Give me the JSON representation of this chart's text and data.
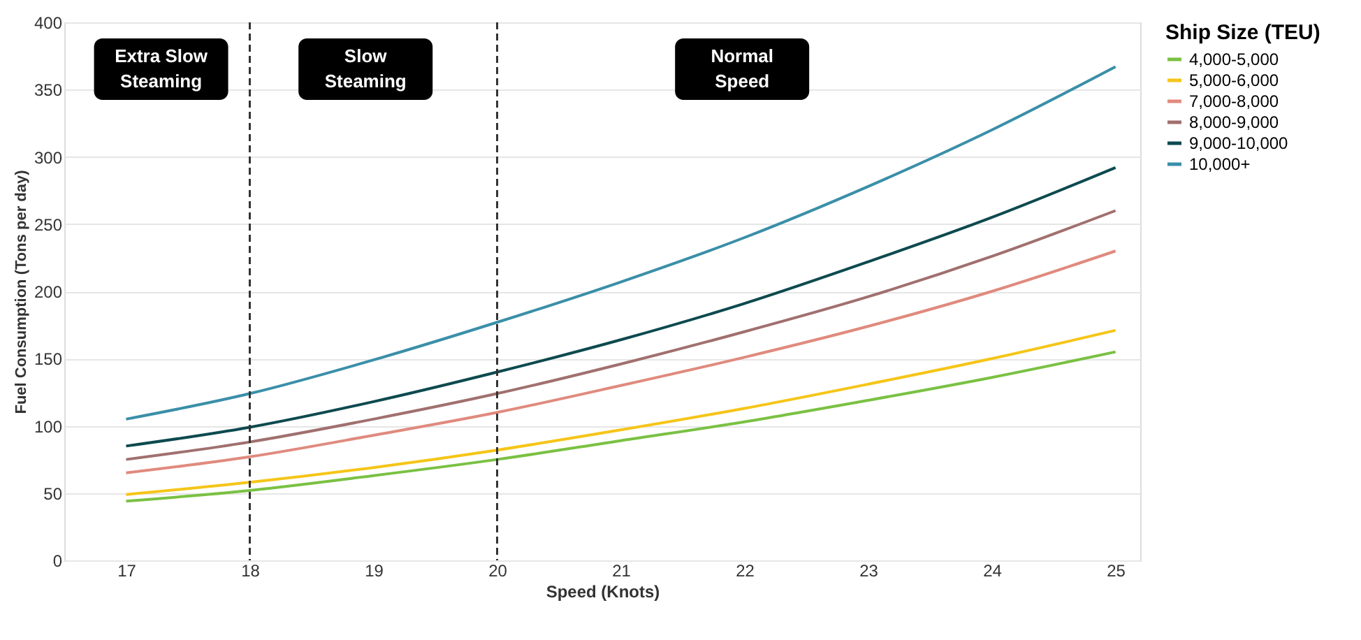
{
  "chart_data": {
    "type": "line",
    "xlabel": "Speed (Knots)",
    "ylabel": "Fuel Consumption (Tons per day)",
    "legend_title": "Ship Size (TEU)",
    "x": [
      17,
      18,
      19,
      20,
      21,
      22,
      23,
      24,
      25
    ],
    "series": [
      {
        "name": "4,000-5,000",
        "color": "#7ac143",
        "values": [
          44,
          52,
          63,
          75,
          89,
          103,
          119,
          136,
          155
        ]
      },
      {
        "name": "5,000-6,000",
        "color": "#f5c518",
        "values": [
          49,
          58,
          69,
          82,
          97,
          113,
          131,
          150,
          171
        ]
      },
      {
        "name": "7,000-8,000",
        "color": "#e08a7e",
        "values": [
          65,
          77,
          93,
          110,
          130,
          151,
          174,
          200,
          230
        ]
      },
      {
        "name": "8,000-9,000",
        "color": "#a0706e",
        "values": [
          75,
          88,
          105,
          124,
          146,
          170,
          196,
          226,
          260
        ]
      },
      {
        "name": "9,000-10,000",
        "color": "#0d4a4f",
        "values": [
          85,
          99,
          118,
          140,
          164,
          191,
          222,
          255,
          292
        ]
      },
      {
        "name": "10,000+",
        "color": "#3a8fa8",
        "values": [
          105,
          124,
          149,
          177,
          207,
          240,
          278,
          320,
          367
        ]
      }
    ],
    "xlim": [
      16.5,
      25.2
    ],
    "xticks": [
      17,
      18,
      19,
      20,
      21,
      22,
      23,
      24,
      25
    ],
    "ylim": [
      0,
      400
    ],
    "yticks": [
      0,
      50,
      100,
      150,
      200,
      250,
      300,
      350,
      400
    ],
    "ref_lines": [
      {
        "axis": "x",
        "value": 18,
        "color": "#333333",
        "line_style": "dashed"
      },
      {
        "axis": "x",
        "value": 20,
        "color": "#333333",
        "line_style": "dashed"
      }
    ],
    "annotations": [
      "Extra Slow\nSteaming",
      "Slow\nSteaming",
      "Normal\nSpeed"
    ],
    "grid": "y",
    "legend": "right",
    "marker": "none",
    "line_style": "solid"
  }
}
